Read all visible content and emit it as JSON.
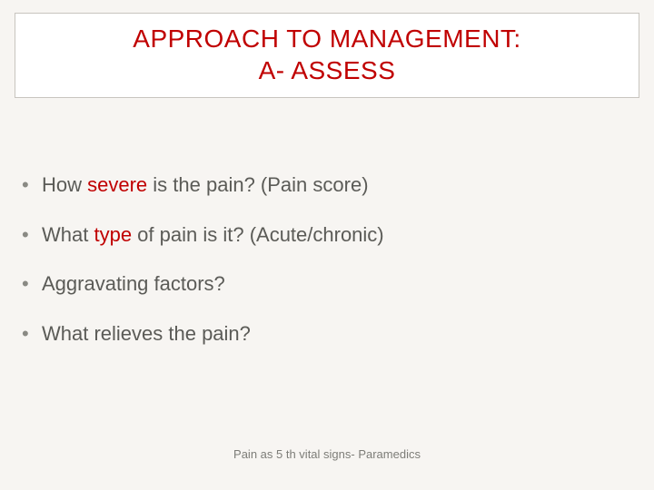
{
  "colors": {
    "background": "#f7f5f2",
    "title_box_border": "#c8c5bf",
    "title_box_bg": "#ffffff",
    "accent_red": "#c00000",
    "body_text": "#5b5b57",
    "bullet_dot": "#8a8a84",
    "footer_text": "#7d7d78"
  },
  "typography": {
    "title_fontsize_pt": 21,
    "body_fontsize_pt": 17,
    "footer_fontsize_pt": 10,
    "font_family": "Arial"
  },
  "title": {
    "line1": "APPROACH TO MANAGEMENT:",
    "line2": "A- ASSESS"
  },
  "bullets": [
    {
      "pre": "How ",
      "em": "severe",
      "post": " is the pain? (Pain score)"
    },
    {
      "pre": "What ",
      "em": "type",
      "post": " of pain is it? (Acute/chronic)"
    },
    {
      "pre": "Aggravating factors?",
      "em": "",
      "post": ""
    },
    {
      "pre": "What relieves the pain?",
      "em": "",
      "post": ""
    }
  ],
  "footer": "Pain as 5 th vital signs- Paramedics"
}
